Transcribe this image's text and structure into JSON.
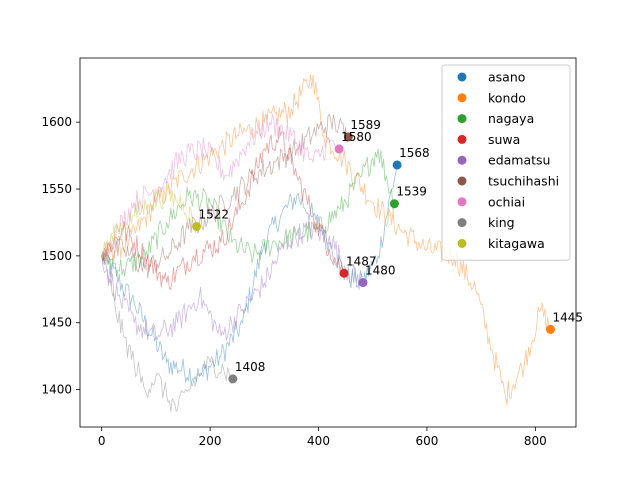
{
  "chart_data": {
    "type": "line",
    "title": "",
    "xlabel": "",
    "ylabel": "",
    "xlim": [
      -40,
      875
    ],
    "ylim": [
      1372,
      1648
    ],
    "xticks": [
      0,
      200,
      400,
      600,
      800
    ],
    "yticks": [
      1400,
      1450,
      1500,
      1550,
      1600
    ],
    "xtick_labels": [
      "0",
      "200",
      "400",
      "600",
      "800"
    ],
    "ytick_labels": [
      "1400",
      "1450",
      "1500",
      "1550",
      "1600"
    ],
    "grid": false,
    "legend_position": "top-right",
    "series": [
      {
        "name": "asano",
        "color": "#1f77b4",
        "line_alpha": 0.45,
        "points": [
          [
            0,
            1500
          ],
          [
            60,
            1465
          ],
          [
            120,
            1420
          ],
          [
            180,
            1410
          ],
          [
            220,
            1425
          ],
          [
            260,
            1450
          ],
          [
            300,
            1510
          ],
          [
            330,
            1530
          ],
          [
            360,
            1545
          ],
          [
            390,
            1530
          ],
          [
            420,
            1510
          ],
          [
            450,
            1485
          ],
          [
            480,
            1480
          ],
          [
            510,
            1500
          ],
          [
            545,
            1568
          ]
        ],
        "end": {
          "x": 545,
          "y": 1568,
          "label": "1568"
        }
      },
      {
        "name": "kondo",
        "color": "#ff7f0e",
        "line_alpha": 0.45,
        "points": [
          [
            0,
            1500
          ],
          [
            50,
            1510
          ],
          [
            100,
            1540
          ],
          [
            150,
            1560
          ],
          [
            200,
            1575
          ],
          [
            250,
            1590
          ],
          [
            300,
            1600
          ],
          [
            350,
            1610
          ],
          [
            390,
            1635
          ],
          [
            410,
            1590
          ],
          [
            450,
            1570
          ],
          [
            500,
            1540
          ],
          [
            550,
            1520
          ],
          [
            600,
            1505
          ],
          [
            650,
            1500
          ],
          [
            690,
            1475
          ],
          [
            720,
            1430
          ],
          [
            745,
            1395
          ],
          [
            780,
            1420
          ],
          [
            810,
            1460
          ],
          [
            828,
            1445
          ]
        ],
        "end": {
          "x": 828,
          "y": 1445,
          "label": "1445"
        }
      },
      {
        "name": "nagaya",
        "color": "#2ca02c",
        "line_alpha": 0.45,
        "points": [
          [
            0,
            1500
          ],
          [
            40,
            1490
          ],
          [
            80,
            1500
          ],
          [
            120,
            1525
          ],
          [
            160,
            1545
          ],
          [
            200,
            1540
          ],
          [
            240,
            1510
          ],
          [
            280,
            1500
          ],
          [
            320,
            1510
          ],
          [
            360,
            1515
          ],
          [
            400,
            1520
          ],
          [
            440,
            1535
          ],
          [
            480,
            1560
          ],
          [
            510,
            1580
          ],
          [
            540,
            1539
          ]
        ],
        "end": {
          "x": 540,
          "y": 1539,
          "label": "1539"
        }
      },
      {
        "name": "suwa",
        "color": "#d62728",
        "line_alpha": 0.45,
        "points": [
          [
            0,
            1500
          ],
          [
            40,
            1520
          ],
          [
            80,
            1500
          ],
          [
            120,
            1480
          ],
          [
            170,
            1500
          ],
          [
            220,
            1510
          ],
          [
            260,
            1540
          ],
          [
            300,
            1580
          ],
          [
            330,
            1590
          ],
          [
            360,
            1560
          ],
          [
            390,
            1530
          ],
          [
            420,
            1505
          ],
          [
            447,
            1487
          ]
        ],
        "end": {
          "x": 447,
          "y": 1487,
          "label": "1487"
        }
      },
      {
        "name": "edamatsu",
        "color": "#9467bd",
        "line_alpha": 0.45,
        "points": [
          [
            0,
            1500
          ],
          [
            30,
            1470
          ],
          [
            60,
            1450
          ],
          [
            100,
            1440
          ],
          [
            140,
            1450
          ],
          [
            180,
            1470
          ],
          [
            220,
            1440
          ],
          [
            260,
            1460
          ],
          [
            300,
            1480
          ],
          [
            340,
            1510
          ],
          [
            380,
            1520
          ],
          [
            420,
            1515
          ],
          [
            450,
            1490
          ],
          [
            482,
            1480
          ]
        ],
        "end": {
          "x": 482,
          "y": 1480,
          "label": "1480"
        }
      },
      {
        "name": "tsuchihashi",
        "color": "#8c564b",
        "line_alpha": 0.45,
        "points": [
          [
            0,
            1500
          ],
          [
            40,
            1505
          ],
          [
            80,
            1490
          ],
          [
            120,
            1500
          ],
          [
            160,
            1520
          ],
          [
            200,
            1530
          ],
          [
            240,
            1545
          ],
          [
            280,
            1560
          ],
          [
            320,
            1570
          ],
          [
            360,
            1580
          ],
          [
            400,
            1595
          ],
          [
            430,
            1600
          ],
          [
            455,
            1589
          ]
        ],
        "end": {
          "x": 455,
          "y": 1589,
          "label": "1589"
        }
      },
      {
        "name": "ochiai",
        "color": "#e377c2",
        "line_alpha": 0.45,
        "points": [
          [
            0,
            1500
          ],
          [
            30,
            1520
          ],
          [
            60,
            1540
          ],
          [
            100,
            1550
          ],
          [
            150,
            1575
          ],
          [
            190,
            1580
          ],
          [
            230,
            1560
          ],
          [
            270,
            1585
          ],
          [
            310,
            1600
          ],
          [
            350,
            1590
          ],
          [
            390,
            1570
          ],
          [
            420,
            1585
          ],
          [
            438,
            1580
          ]
        ],
        "end": {
          "x": 438,
          "y": 1580,
          "label": "1580"
        }
      },
      {
        "name": "king",
        "color": "#7f7f7f",
        "line_alpha": 0.45,
        "points": [
          [
            0,
            1500
          ],
          [
            20,
            1470
          ],
          [
            40,
            1440
          ],
          [
            60,
            1420
          ],
          [
            80,
            1400
          ],
          [
            100,
            1410
          ],
          [
            120,
            1395
          ],
          [
            140,
            1385
          ],
          [
            160,
            1400
          ],
          [
            180,
            1410
          ],
          [
            200,
            1420
          ],
          [
            225,
            1415
          ],
          [
            242,
            1408
          ]
        ],
        "end": {
          "x": 242,
          "y": 1408,
          "label": "1408"
        }
      },
      {
        "name": "kitagawa",
        "color": "#bcbd22",
        "line_alpha": 0.45,
        "points": [
          [
            0,
            1500
          ],
          [
            30,
            1520
          ],
          [
            60,
            1530
          ],
          [
            90,
            1540
          ],
          [
            120,
            1545
          ],
          [
            150,
            1540
          ],
          [
            175,
            1522
          ]
        ],
        "end": {
          "x": 175,
          "y": 1522,
          "label": "1522"
        }
      }
    ]
  }
}
